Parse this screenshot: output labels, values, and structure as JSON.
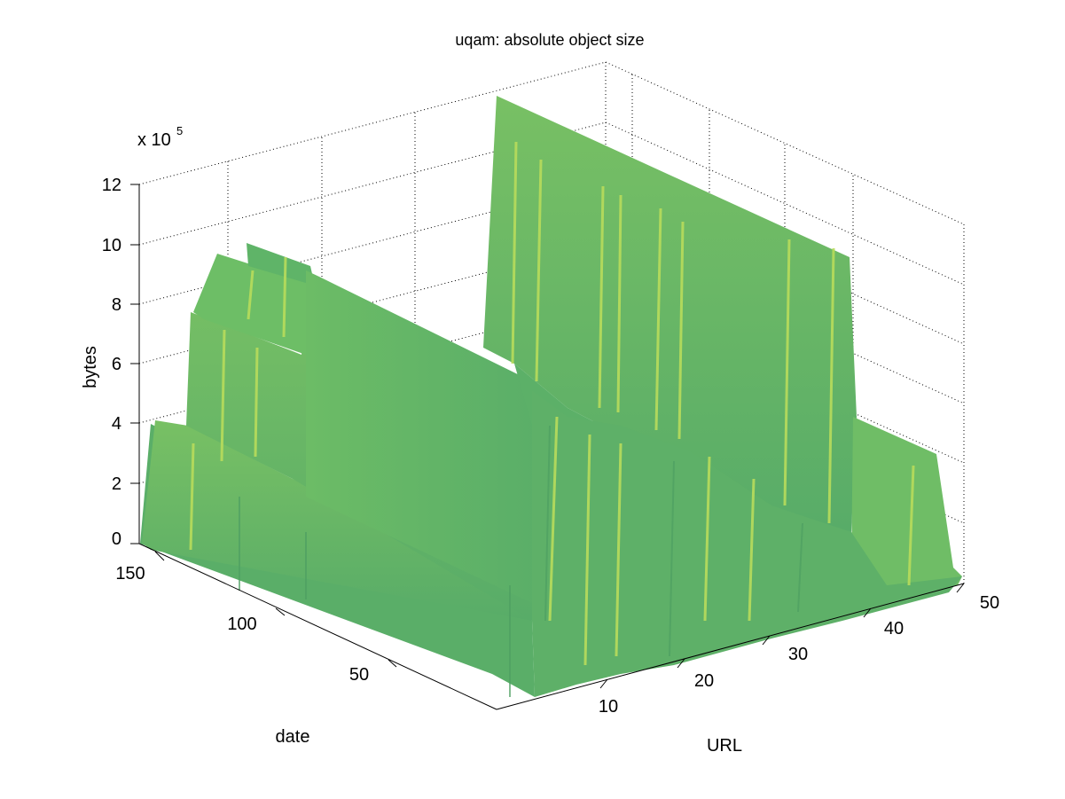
{
  "chart_data": {
    "type": "surface",
    "title": "uqam: absolute object size",
    "xlabel": "URL",
    "ylabel": "date",
    "zlabel": "bytes",
    "z_exponent_label": "x 10",
    "z_exponent": "5",
    "xlim": [
      1,
      50
    ],
    "ylim": [
      1,
      160
    ],
    "zlim": [
      0,
      12
    ],
    "x_ticks": [
      10,
      20,
      30,
      40,
      50
    ],
    "y_ticks": [
      50,
      100,
      150
    ],
    "z_ticks": [
      0,
      2,
      4,
      6,
      8,
      10,
      12
    ],
    "z_scale": 100000,
    "grid": true,
    "colormap_color": "#5fb368",
    "surface_profile": [
      {
        "url": 1,
        "bytes_e5": 0.3
      },
      {
        "url": 2,
        "bytes_e5": 4.2
      },
      {
        "url": 5,
        "bytes_e5": 4.0
      },
      {
        "url": 6,
        "bytes_e5": 7.7
      },
      {
        "url": 7,
        "bytes_e5": 8.0
      },
      {
        "url": 8,
        "bytes_e5": 9.2
      },
      {
        "url": 10,
        "bytes_e5": 9.0
      },
      {
        "url": 12,
        "bytes_e5": 8.0
      },
      {
        "url": 15,
        "bytes_e5": 7.5
      },
      {
        "url": 17,
        "bytes_e5": 1.0
      },
      {
        "url": 18,
        "bytes_e5": 12.0
      },
      {
        "url": 30,
        "bytes_e5": 10.8
      },
      {
        "url": 31,
        "bytes_e5": 4.5
      },
      {
        "url": 33,
        "bytes_e5": 1.5
      },
      {
        "url": 36,
        "bytes_e5": 3.5
      },
      {
        "url": 38,
        "bytes_e5": 1.2
      },
      {
        "url": 42,
        "bytes_e5": 3.0
      },
      {
        "url": 46,
        "bytes_e5": 2.5
      },
      {
        "url": 48,
        "bytes_e5": 0.2
      },
      {
        "url": 50,
        "bytes_e5": 0.1
      }
    ]
  }
}
